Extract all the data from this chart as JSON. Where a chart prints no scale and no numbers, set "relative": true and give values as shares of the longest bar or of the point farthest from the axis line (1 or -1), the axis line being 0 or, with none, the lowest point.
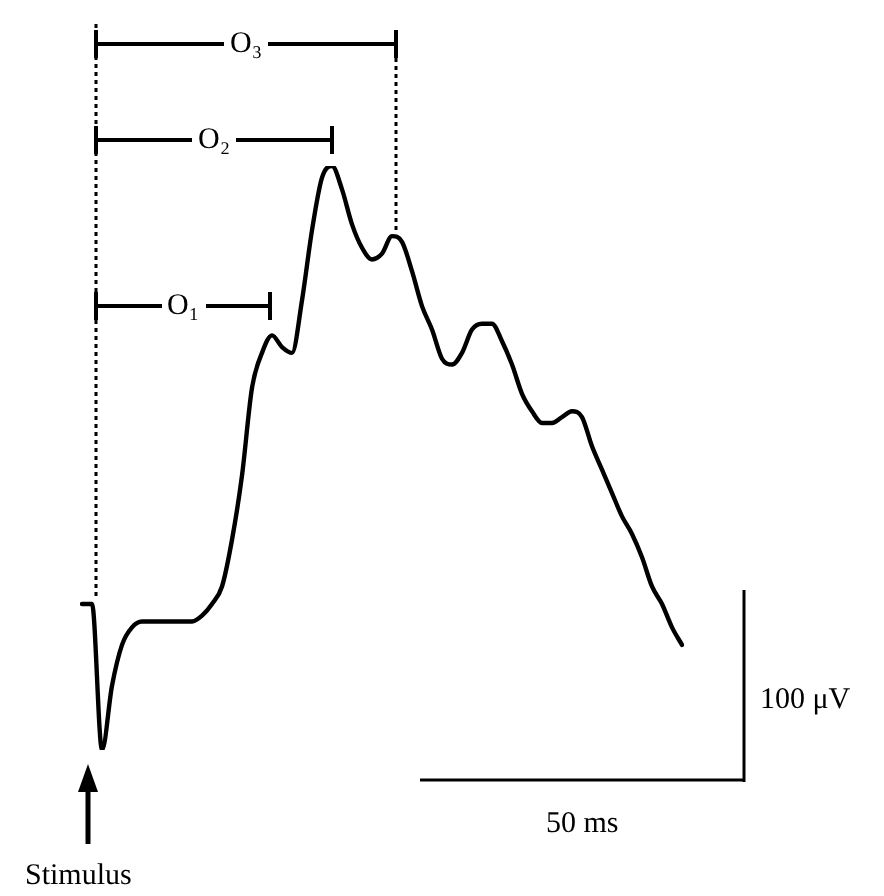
{
  "chart_data": {
    "type": "line",
    "relative": true,
    "color": "#000000",
    "marker": "none",
    "line_style": "solid",
    "legend": false,
    "categories": [
      null,
      null,
      null,
      null,
      null,
      null,
      null,
      null,
      null,
      null,
      null,
      null,
      null,
      null,
      null,
      null,
      null,
      null,
      null,
      null,
      null,
      null,
      null,
      null,
      null,
      null,
      null,
      null,
      null,
      null,
      null,
      null,
      null,
      null,
      null,
      null,
      null,
      null,
      null,
      null,
      null,
      null,
      null,
      null,
      null,
      null,
      null,
      null,
      null,
      null,
      null,
      null,
      null,
      null,
      null,
      null,
      null,
      null,
      null,
      null,
      null
    ],
    "values": [
      0.25,
      0.25,
      0,
      0.11,
      0.18,
      0.21,
      0.22,
      0.22,
      0.22,
      0.22,
      0.22,
      0.22,
      0.23,
      0.25,
      0.28,
      0.36,
      0.47,
      0.62,
      0.68,
      0.71,
      0.69,
      0.68,
      0.77,
      0.89,
      0.98,
      1,
      0.96,
      0.9,
      0.86,
      0.84,
      0.85,
      0.88,
      0.87,
      0.82,
      0.76,
      0.72,
      0.67,
      0.66,
      0.68,
      0.72,
      0.73,
      0.73,
      0.7,
      0.66,
      0.61,
      0.58,
      0.56,
      0.56,
      0.57,
      0.58,
      0.57,
      0.52,
      0.48,
      0.44,
      0.4,
      0.37,
      0.33,
      0.28,
      0.25,
      0.21,
      0.18
    ],
    "annotations": [
      "O₁",
      "O₂",
      "O₃",
      "100 μV",
      "50 ms",
      "Stimulus"
    ]
  }
}
